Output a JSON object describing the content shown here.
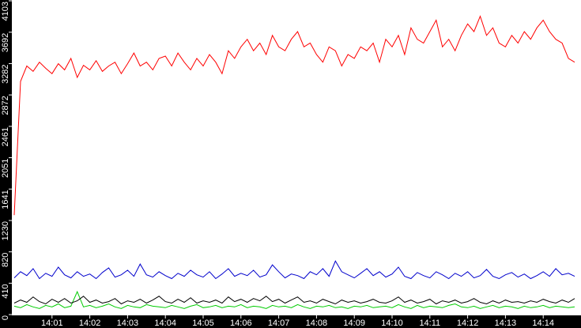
{
  "chart_data": {
    "type": "line",
    "categories": [
      null,
      null,
      null,
      null,
      null,
      null,
      "14:01",
      null,
      null,
      null,
      null,
      null,
      "14:02",
      null,
      null,
      null,
      null,
      null,
      "14:03",
      null,
      null,
      null,
      null,
      null,
      "14:04",
      null,
      null,
      null,
      null,
      null,
      "14:05",
      null,
      null,
      null,
      null,
      null,
      "14:06",
      null,
      null,
      null,
      null,
      null,
      "14:07",
      null,
      null,
      null,
      null,
      null,
      "14:08",
      null,
      null,
      null,
      null,
      null,
      "14:09",
      null,
      null,
      null,
      null,
      null,
      "14:10",
      null,
      null,
      null,
      null,
      null,
      "14:11",
      null,
      null,
      null,
      null,
      null,
      "14:12",
      null,
      null,
      null,
      null,
      null,
      "14:13",
      null,
      null,
      null,
      null,
      null,
      "14:14",
      null,
      null,
      null,
      null,
      null
    ],
    "ylim": [
      0,
      4103
    ],
    "yticks": [
      0,
      410,
      820,
      1230,
      1641,
      2051,
      2461,
      2872,
      3282,
      3692,
      4103
    ],
    "grid": false,
    "series": [
      {
        "color": "#ff0000",
        "values": [
          1300,
          3050,
          3250,
          3180,
          3300,
          3220,
          3150,
          3280,
          3200,
          3350,
          3100,
          3260,
          3200,
          3320,
          3180,
          3250,
          3300,
          3150,
          3280,
          3420,
          3250,
          3300,
          3200,
          3350,
          3380,
          3250,
          3420,
          3300,
          3200,
          3350,
          3250,
          3400,
          3300,
          3150,
          3450,
          3350,
          3500,
          3600,
          3450,
          3550,
          3400,
          3650,
          3500,
          3450,
          3600,
          3700,
          3500,
          3550,
          3400,
          3300,
          3500,
          3450,
          3250,
          3400,
          3350,
          3500,
          3450,
          3550,
          3300,
          3600,
          3500,
          3650,
          3400,
          3750,
          3600,
          3550,
          3700,
          3850,
          3500,
          3600,
          3450,
          3650,
          3800,
          3700,
          3900,
          3650,
          3750,
          3550,
          3500,
          3650,
          3550,
          3700,
          3600,
          3750,
          3850,
          3700,
          3600,
          3550,
          3350,
          3300
        ]
      },
      {
        "color": "#0000cc",
        "values": [
          480,
          560,
          510,
          600,
          470,
          540,
          500,
          620,
          520,
          480,
          560,
          500,
          530,
          470,
          550,
          610,
          490,
          520,
          580,
          500,
          660,
          520,
          490,
          560,
          510,
          470,
          540,
          500,
          580,
          520,
          490,
          560,
          470,
          530,
          600,
          500,
          540,
          510,
          580,
          490,
          520,
          650,
          560,
          480,
          530,
          510,
          470,
          560,
          520,
          600,
          500,
          700,
          560,
          520,
          480,
          540,
          600,
          510,
          560,
          490,
          530,
          620,
          500,
          470,
          550,
          510,
          480,
          560,
          520,
          470,
          540,
          500,
          560,
          480,
          510,
          590,
          500,
          470,
          520,
          550,
          490,
          530,
          470,
          510,
          560,
          500,
          600,
          520,
          540,
          500
        ]
      },
      {
        "color": "#000000",
        "values": [
          150,
          190,
          160,
          230,
          170,
          140,
          200,
          160,
          210,
          150,
          180,
          240,
          160,
          190,
          150,
          170,
          210,
          140,
          180,
          160,
          200,
          150,
          190,
          240,
          170,
          150,
          200,
          160,
          220,
          150,
          180,
          160,
          190,
          150,
          230,
          170,
          200,
          160,
          210,
          180,
          240,
          170,
          200,
          150,
          190,
          230,
          160,
          180,
          150,
          200,
          170,
          140,
          190,
          160,
          180,
          150,
          170,
          200,
          160,
          150,
          180,
          230,
          160,
          190,
          150,
          170,
          200,
          140,
          180,
          160,
          190,
          150,
          170,
          210,
          160,
          140,
          180,
          150,
          190,
          160,
          170,
          150,
          180,
          160,
          200,
          170,
          150,
          190,
          160,
          210
        ]
      },
      {
        "color": "#00cc00",
        "values": [
          110,
          90,
          130,
          100,
          80,
          120,
          100,
          140,
          90,
          110,
          300,
          100,
          120,
          90,
          110,
          140,
          100,
          80,
          120,
          100,
          90,
          130,
          110,
          100,
          90,
          120,
          100,
          80,
          110,
          130,
          90,
          100,
          120,
          90,
          110,
          100,
          130,
          90,
          110,
          100,
          80,
          120,
          100,
          110,
          90,
          130,
          100,
          80,
          110,
          100,
          120,
          90,
          100,
          80,
          110,
          100,
          120,
          90,
          100,
          110,
          90,
          130,
          100,
          80,
          120,
          90,
          110,
          100,
          90,
          120,
          140,
          100,
          90,
          110,
          80,
          100,
          120,
          90,
          110,
          100,
          80,
          110,
          90,
          100,
          120,
          90,
          110,
          100,
          90,
          100
        ]
      }
    ]
  }
}
